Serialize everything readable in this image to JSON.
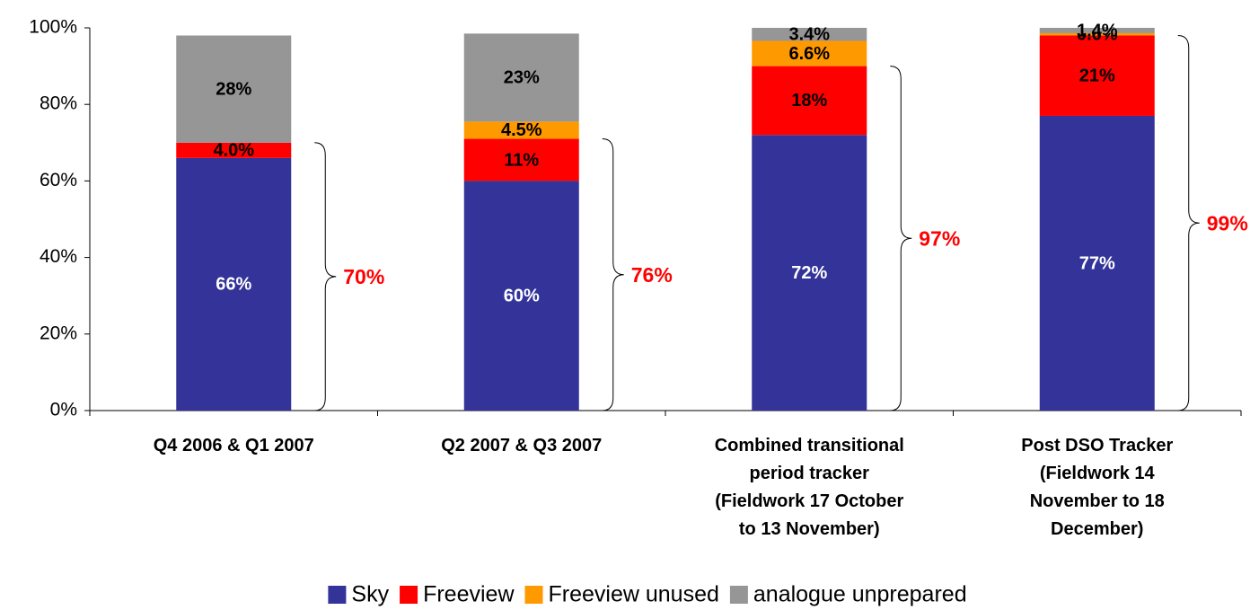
{
  "chart_data": {
    "type": "stacked_bar",
    "categories": [
      [
        "Q4 2006 & Q1 2007"
      ],
      [
        "Q2 2007 & Q3 2007"
      ],
      [
        "Combined transitional",
        "period  tracker",
        "(Fieldwork 17 October",
        "to 13 November)"
      ],
      [
        "Post DSO Tracker",
        "(Fieldwork 14",
        "November to 18",
        "December)"
      ]
    ],
    "series": [
      {
        "name": "Sky",
        "color": "#333399",
        "values": [
          66,
          60,
          72,
          77
        ],
        "value_labels": [
          "66%",
          "60%",
          "72%",
          "77%"
        ]
      },
      {
        "name": "Freeview",
        "color": "#ff0000",
        "values": [
          4.0,
          11,
          18,
          21
        ],
        "value_labels": [
          "4.0%",
          "11%",
          "18%",
          "21%"
        ]
      },
      {
        "name": "Freeview unused",
        "color": "#ff9900",
        "values": [
          null,
          4.5,
          6.6,
          0.6
        ],
        "value_labels": [
          null,
          "4.5%",
          "6.6%",
          "0.6%"
        ]
      },
      {
        "name": "analogue unprepared",
        "color": "#969696",
        "values": [
          28,
          23,
          3.4,
          1.4
        ],
        "value_labels": [
          "28%",
          "23%",
          "3.4%",
          "1.4%"
        ]
      }
    ],
    "annotations": [
      "70%",
      "76%",
      "97%",
      "99%"
    ],
    "ylim": [
      0,
      100
    ],
    "yticks": [
      {
        "value": 0,
        "label": "0%"
      },
      {
        "value": 20,
        "label": "20%"
      },
      {
        "value": 40,
        "label": "40%"
      },
      {
        "value": 60,
        "label": "60%"
      },
      {
        "value": 80,
        "label": "80%"
      },
      {
        "value": 100,
        "label": "100%"
      }
    ],
    "legend": "bottom"
  }
}
